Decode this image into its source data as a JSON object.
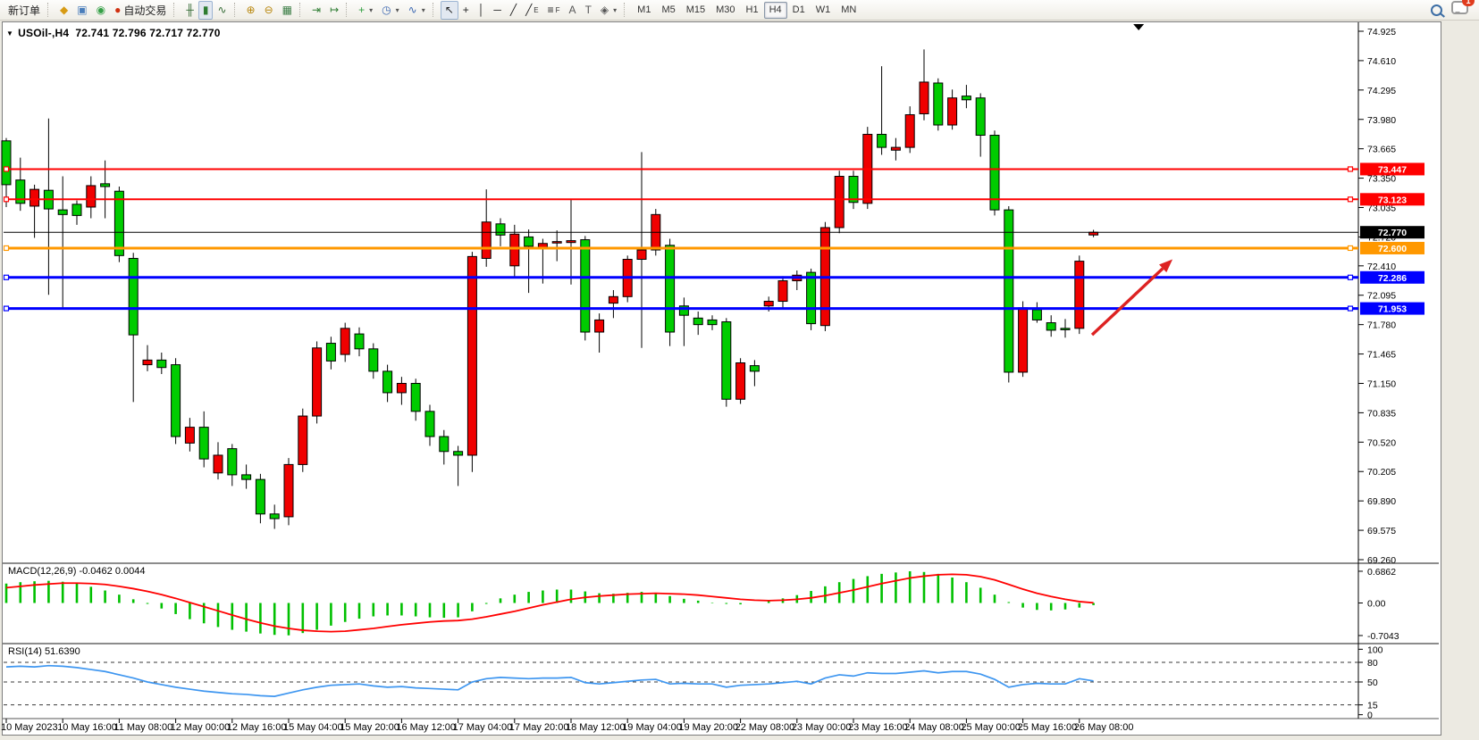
{
  "toolbar": {
    "groups": [
      [
        {
          "n": "new-order-button",
          "label": "新订单"
        }
      ],
      [
        {
          "n": "market-watch-button",
          "icon": "coins-icon",
          "g": "◆",
          "c": "#d79b14"
        },
        {
          "n": "data-window-button",
          "icon": "window-icon",
          "g": "▣",
          "c": "#4a7ebb"
        },
        {
          "n": "navigator-button",
          "icon": "signal-icon",
          "g": "◉",
          "c": "#35a047"
        },
        {
          "n": "auto-trading-button",
          "icon": "robot-icon",
          "g": "●",
          "c": "#d03010",
          "label": "自动交易"
        }
      ],
      [
        {
          "n": "bar-chart-mode-button",
          "icon": "ohlc-bars-icon",
          "g": "╫",
          "c": "#356b35"
        },
        {
          "n": "candlestick-mode-button",
          "icon": "candles-icon",
          "g": "▮",
          "c": "#2e7d32",
          "active": true
        },
        {
          "n": "line-chart-mode-button",
          "icon": "line-chart-icon",
          "g": "∿",
          "c": "#356b35"
        }
      ],
      [
        {
          "n": "zoom-in-button",
          "icon": "zoom-in-icon",
          "g": "⊕",
          "c": "#b8860b"
        },
        {
          "n": "zoom-out-button",
          "icon": "zoom-out-icon",
          "g": "⊖",
          "c": "#b8860b"
        },
        {
          "n": "tile-windows-button",
          "icon": "tile-windows-icon",
          "g": "▦",
          "c": "#3a7d44"
        }
      ],
      [
        {
          "n": "auto-scroll-button",
          "icon": "auto-scroll-icon",
          "g": "⇥",
          "c": "#2e7d32"
        },
        {
          "n": "chart-shift-button",
          "icon": "chart-shift-icon",
          "g": "↦",
          "c": "#2e7d32"
        }
      ],
      [
        {
          "n": "new-chart-button",
          "icon": "add-chart-icon",
          "g": "+",
          "c": "#2e9e3e",
          "dd": true
        },
        {
          "n": "periodicity-button",
          "icon": "clock-icon",
          "g": "◷",
          "c": "#3a66b0",
          "dd": true
        },
        {
          "n": "indicators-button",
          "icon": "indicator-wave-icon",
          "g": "∿",
          "c": "#3a66b0",
          "dd": true
        }
      ],
      [
        {
          "n": "cursor-button",
          "icon": "cursor-icon",
          "g": "↖",
          "c": "#222",
          "active": true
        },
        {
          "n": "crosshair-button",
          "icon": "crosshair-icon",
          "g": "+",
          "c": "#222"
        },
        {
          "n": "vertical-line-button",
          "icon": "vline-icon",
          "g": "│",
          "c": "#222"
        },
        {
          "n": "horizontal-line-button",
          "icon": "hline-icon",
          "g": "─",
          "c": "#222"
        },
        {
          "n": "trendline-button",
          "icon": "trendline-icon",
          "g": "╱",
          "c": "#222"
        },
        {
          "n": "channel-button",
          "icon": "channel-icon",
          "g": "╱",
          "sub": "E",
          "c": "#222"
        },
        {
          "n": "fibonacci-button",
          "icon": "fibonacci-icon",
          "g": "≡",
          "sub": "F",
          "c": "#222"
        },
        {
          "n": "text-button",
          "icon": "text-a-icon",
          "g": "A",
          "c": "#555"
        },
        {
          "n": "text-label-button",
          "icon": "text-label-icon",
          "g": "T",
          "c": "#555"
        },
        {
          "n": "shapes-button",
          "icon": "shapes-icon",
          "g": "◈",
          "c": "#555",
          "dd": true
        }
      ]
    ],
    "timeframes": [
      "M1",
      "M5",
      "M15",
      "M30",
      "H1",
      "H4",
      "D1",
      "W1",
      "MN"
    ],
    "active_timeframe": "H4",
    "chat_badge": "1"
  },
  "chart": {
    "marker_glyph": "▼",
    "symbol_period": "USOil-,H4",
    "ohlc_text": "72.741 72.796 72.717 72.770"
  },
  "macd": {
    "label": "MACD(12,26,9) -0.0462 0.0044"
  },
  "rsi": {
    "label": "RSI(14) 51.6390"
  },
  "colors": {
    "bull": "#f00000",
    "bear": "#00cc00",
    "outline": "#000000",
    "macd_hist": "#00c000",
    "macd_signal": "#ff0000",
    "rsi_line": "#3e96f0",
    "arrow": "#dd2222",
    "axis_text": "#000000"
  },
  "chart_data": {
    "type": "candlestick",
    "symbol": "USOil-",
    "timeframe": "H4",
    "price_axis": {
      "ticks": [
        "74.925",
        "74.610",
        "74.295",
        "73.980",
        "73.665",
        "73.350",
        "73.035",
        "72.720",
        "72.410",
        "72.095",
        "71.780",
        "71.465",
        "71.150",
        "70.835",
        "70.520",
        "70.205",
        "69.890",
        "69.575",
        "69.260"
      ]
    },
    "x_labels": [
      {
        "i": 0,
        "t": "10 May 2023"
      },
      {
        "i": 4,
        "t": "10 May 16:00"
      },
      {
        "i": 8,
        "t": "11 May 08:00"
      },
      {
        "i": 12,
        "t": "12 May 00:00"
      },
      {
        "i": 16,
        "t": "12 May 16:00"
      },
      {
        "i": 20,
        "t": "15 May 04:00"
      },
      {
        "i": 24,
        "t": "15 May 20:00"
      },
      {
        "i": 28,
        "t": "16 May 12:00"
      },
      {
        "i": 32,
        "t": "17 May 04:00"
      },
      {
        "i": 36,
        "t": "17 May 20:00"
      },
      {
        "i": 40,
        "t": "18 May 12:00"
      },
      {
        "i": 44,
        "t": "19 May 04:00"
      },
      {
        "i": 48,
        "t": "19 May 20:00"
      },
      {
        "i": 52,
        "t": "22 May 08:00"
      },
      {
        "i": 56,
        "t": "23 May 00:00"
      },
      {
        "i": 60,
        "t": "23 May 16:00"
      },
      {
        "i": 64,
        "t": "24 May 08:00"
      },
      {
        "i": 68,
        "t": "25 May 00:00"
      },
      {
        "i": 72,
        "t": "25 May 16:00"
      },
      {
        "i": 76,
        "t": "26 May 08:00"
      }
    ],
    "candles": [
      [
        73.75,
        73.78,
        73.04,
        73.28,
        "g"
      ],
      [
        73.33,
        73.57,
        73.0,
        73.08,
        "g"
      ],
      [
        73.05,
        73.28,
        72.71,
        73.23,
        "r"
      ],
      [
        73.22,
        73.99,
        72.1,
        73.02,
        "g"
      ],
      [
        73.01,
        73.37,
        71.95,
        72.96,
        "g"
      ],
      [
        73.07,
        73.11,
        72.85,
        72.95,
        "g"
      ],
      [
        73.04,
        73.37,
        72.92,
        73.27,
        "r"
      ],
      [
        73.29,
        73.54,
        72.92,
        73.26,
        "g"
      ],
      [
        73.21,
        73.26,
        72.45,
        72.52,
        "g"
      ],
      [
        72.49,
        72.55,
        70.95,
        71.67,
        "g"
      ],
      [
        71.35,
        71.56,
        71.28,
        71.4,
        "r"
      ],
      [
        71.4,
        71.48,
        71.25,
        71.32,
        "g"
      ],
      [
        71.35,
        71.42,
        70.5,
        70.58,
        "g"
      ],
      [
        70.51,
        70.78,
        70.42,
        70.68,
        "r"
      ],
      [
        70.68,
        70.85,
        70.25,
        70.34,
        "g"
      ],
      [
        70.19,
        70.52,
        70.12,
        70.38,
        "r"
      ],
      [
        70.45,
        70.5,
        70.05,
        70.17,
        "g"
      ],
      [
        70.17,
        70.28,
        70.02,
        70.12,
        "g"
      ],
      [
        70.12,
        70.18,
        69.65,
        69.75,
        "g"
      ],
      [
        69.75,
        69.85,
        69.59,
        69.7,
        "g"
      ],
      [
        69.72,
        70.35,
        69.63,
        70.28,
        "r"
      ],
      [
        70.28,
        70.88,
        70.2,
        70.8,
        "r"
      ],
      [
        70.8,
        71.6,
        70.72,
        71.53,
        "r"
      ],
      [
        71.58,
        71.65,
        71.3,
        71.39,
        "g"
      ],
      [
        71.46,
        71.8,
        71.38,
        71.74,
        "r"
      ],
      [
        71.68,
        71.75,
        71.44,
        71.52,
        "g"
      ],
      [
        71.52,
        71.58,
        71.2,
        71.28,
        "g"
      ],
      [
        71.28,
        71.35,
        70.95,
        71.05,
        "g"
      ],
      [
        71.05,
        71.22,
        70.92,
        71.15,
        "r"
      ],
      [
        71.15,
        71.2,
        70.75,
        70.85,
        "g"
      ],
      [
        70.85,
        70.92,
        70.48,
        70.58,
        "g"
      ],
      [
        70.58,
        70.65,
        70.28,
        70.42,
        "g"
      ],
      [
        70.42,
        70.48,
        70.05,
        70.38,
        "g"
      ],
      [
        70.38,
        72.56,
        70.2,
        72.51,
        "r"
      ],
      [
        72.49,
        73.23,
        72.4,
        72.88,
        "r"
      ],
      [
        72.86,
        72.92,
        72.62,
        72.74,
        "g"
      ],
      [
        72.41,
        72.85,
        72.29,
        72.75,
        "r"
      ],
      [
        72.72,
        72.8,
        72.12,
        72.62,
        "g"
      ],
      [
        72.6,
        72.7,
        72.22,
        72.65,
        "r"
      ],
      [
        72.66,
        72.79,
        72.46,
        72.67,
        "r"
      ],
      [
        72.66,
        73.12,
        72.21,
        72.68,
        "r"
      ],
      [
        72.69,
        72.73,
        71.61,
        71.7,
        "g"
      ],
      [
        71.7,
        71.9,
        71.48,
        71.83,
        "r"
      ],
      [
        72.01,
        72.15,
        71.85,
        72.08,
        "r"
      ],
      [
        72.08,
        72.52,
        72.02,
        72.48,
        "r"
      ],
      [
        72.48,
        73.63,
        71.53,
        72.58,
        "r"
      ],
      [
        72.58,
        73.02,
        72.52,
        72.96,
        "r"
      ],
      [
        72.63,
        72.7,
        71.55,
        71.7,
        "g"
      ],
      [
        71.98,
        72.07,
        71.55,
        71.88,
        "g"
      ],
      [
        71.85,
        71.92,
        71.67,
        71.78,
        "g"
      ],
      [
        71.83,
        71.88,
        71.72,
        71.78,
        "g"
      ],
      [
        71.81,
        71.85,
        70.9,
        70.98,
        "g"
      ],
      [
        70.98,
        71.42,
        70.93,
        71.37,
        "r"
      ],
      [
        71.34,
        71.4,
        71.12,
        71.28,
        "g"
      ],
      [
        71.98,
        72.08,
        71.92,
        72.03,
        "r"
      ],
      [
        72.03,
        72.3,
        71.96,
        72.25,
        "r"
      ],
      [
        72.25,
        72.36,
        72.15,
        72.31,
        "r"
      ],
      [
        72.34,
        72.38,
        71.72,
        71.79,
        "g"
      ],
      [
        71.77,
        72.88,
        71.71,
        72.82,
        "r"
      ],
      [
        72.82,
        73.43,
        72.76,
        73.37,
        "r"
      ],
      [
        73.37,
        73.43,
        73.02,
        73.09,
        "g"
      ],
      [
        73.08,
        73.9,
        73.02,
        73.82,
        "r"
      ],
      [
        73.82,
        74.55,
        73.6,
        73.68,
        "g"
      ],
      [
        73.65,
        73.78,
        73.54,
        73.68,
        "r"
      ],
      [
        73.68,
        74.12,
        73.62,
        74.03,
        "r"
      ],
      [
        74.04,
        74.73,
        73.97,
        74.38,
        "r"
      ],
      [
        74.37,
        74.42,
        73.86,
        73.92,
        "g"
      ],
      [
        73.92,
        74.3,
        73.87,
        74.21,
        "r"
      ],
      [
        74.23,
        74.35,
        74.1,
        74.19,
        "g"
      ],
      [
        74.21,
        74.26,
        73.58,
        73.81,
        "g"
      ],
      [
        73.81,
        73.86,
        72.95,
        73.01,
        "g"
      ],
      [
        73.01,
        73.05,
        71.16,
        71.27,
        "g"
      ],
      [
        71.27,
        72.03,
        71.22,
        71.96,
        "r"
      ],
      [
        71.94,
        72.02,
        71.8,
        71.83,
        "g"
      ],
      [
        71.8,
        71.88,
        71.65,
        71.72,
        "g"
      ],
      [
        71.74,
        71.84,
        71.64,
        71.74,
        "g"
      ],
      [
        71.74,
        72.52,
        71.68,
        72.46,
        "r"
      ],
      [
        72.741,
        72.796,
        72.717,
        72.77,
        "r"
      ]
    ],
    "hlines": [
      {
        "label": "73.447",
        "price": 73.447,
        "color": "#ff0000",
        "width": 2
      },
      {
        "label": "73.123",
        "price": 73.123,
        "color": "#ff0000",
        "width": 2
      },
      {
        "label": "72.600",
        "price": 72.6,
        "color": "#ff9800",
        "width": 3
      },
      {
        "label": "72.286",
        "price": 72.286,
        "color": "#0000ff",
        "width": 3
      },
      {
        "label": "71.953",
        "price": 71.953,
        "color": "#0000ff",
        "width": 3
      }
    ],
    "price_line": {
      "label": "72.770",
      "price": 72.77,
      "color": "#000000",
      "width": 1
    },
    "arrow": {
      "from_index": 76.9,
      "from_price": 71.67,
      "to_index": 82.6,
      "to_price": 72.48
    },
    "shift_marker_index": 80.2,
    "macd": {
      "ticks": [
        {
          "t": "0.6862",
          "v": 0.6862
        },
        {
          "t": "0.00",
          "v": 0
        },
        {
          "t": "-0.7043",
          "v": -0.7043
        }
      ],
      "hist": [
        0.42,
        0.45,
        0.47,
        0.48,
        0.46,
        0.42,
        0.35,
        0.27,
        0.18,
        0.08,
        -0.02,
        -0.12,
        -0.24,
        -0.35,
        -0.44,
        -0.52,
        -0.58,
        -0.62,
        -0.66,
        -0.69,
        -0.7,
        -0.65,
        -0.58,
        -0.49,
        -0.41,
        -0.34,
        -0.29,
        -0.27,
        -0.27,
        -0.29,
        -0.31,
        -0.32,
        -0.31,
        -0.18,
        -0.02,
        0.1,
        0.18,
        0.24,
        0.27,
        0.29,
        0.29,
        0.25,
        0.21,
        0.2,
        0.22,
        0.24,
        0.22,
        0.15,
        0.09,
        0.05,
        0.01,
        -0.02,
        -0.03,
        0.0,
        0.05,
        0.1,
        0.17,
        0.26,
        0.36,
        0.45,
        0.52,
        0.58,
        0.63,
        0.66,
        0.686,
        0.67,
        0.63,
        0.55,
        0.45,
        0.33,
        0.18,
        0.02,
        -0.1,
        -0.15,
        -0.16,
        -0.14,
        -0.1,
        -0.046
      ],
      "signal": [
        0.33,
        0.36,
        0.39,
        0.41,
        0.43,
        0.43,
        0.42,
        0.4,
        0.36,
        0.31,
        0.25,
        0.18,
        0.1,
        0.01,
        -0.08,
        -0.17,
        -0.26,
        -0.35,
        -0.43,
        -0.5,
        -0.55,
        -0.59,
        -0.61,
        -0.62,
        -0.61,
        -0.58,
        -0.55,
        -0.51,
        -0.47,
        -0.44,
        -0.41,
        -0.39,
        -0.38,
        -0.35,
        -0.3,
        -0.24,
        -0.18,
        -0.11,
        -0.04,
        0.02,
        0.08,
        0.12,
        0.15,
        0.17,
        0.19,
        0.2,
        0.21,
        0.2,
        0.19,
        0.17,
        0.14,
        0.11,
        0.08,
        0.06,
        0.05,
        0.06,
        0.08,
        0.11,
        0.16,
        0.22,
        0.28,
        0.35,
        0.42,
        0.48,
        0.54,
        0.58,
        0.61,
        0.62,
        0.61,
        0.57,
        0.5,
        0.4,
        0.3,
        0.21,
        0.14,
        0.08,
        0.03,
        0.004
      ]
    },
    "rsi": {
      "ticks": [
        {
          "t": "100",
          "v": 100
        },
        {
          "t": "80",
          "v": 80
        },
        {
          "t": "50",
          "v": 50
        },
        {
          "t": "15",
          "v": 15
        },
        {
          "t": "0",
          "v": 0
        }
      ],
      "levels": [
        80,
        50,
        15
      ],
      "values": [
        73,
        74,
        73,
        75,
        74,
        72,
        69,
        66,
        61,
        56,
        50,
        46,
        42,
        39,
        36,
        34,
        32,
        31,
        29,
        28,
        33,
        38,
        42,
        45,
        46,
        47,
        44,
        42,
        43,
        41,
        40,
        39,
        38,
        50,
        55,
        57,
        56,
        55,
        56,
        56,
        57,
        49,
        47,
        49,
        51,
        53,
        54,
        47,
        48,
        47,
        47,
        42,
        45,
        46,
        47,
        49,
        51,
        47,
        56,
        61,
        59,
        64,
        63,
        63,
        65,
        67,
        64,
        66,
        66,
        62,
        54,
        42,
        46,
        48,
        47,
        47,
        55,
        51.64
      ]
    }
  }
}
